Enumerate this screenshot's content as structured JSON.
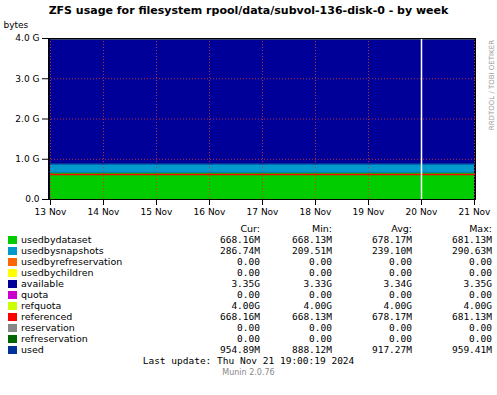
{
  "chart_data": {
    "type": "area",
    "title": "ZFS usage for filesystem rpool/data/subvol-136-disk-0 - by week",
    "ylabel": "bytes",
    "x": [
      "13 Nov",
      "14 Nov",
      "15 Nov",
      "16 Nov",
      "17 Nov",
      "18 Nov",
      "19 Nov",
      "20 Nov",
      "21 Nov"
    ],
    "ylim": [
      0,
      4294967296
    ],
    "yticks": [
      {
        "value": 0,
        "label": "0.0"
      },
      {
        "value": 1073741824,
        "label": "1.0 G"
      },
      {
        "value": 2147483648,
        "label": "2.0 G"
      },
      {
        "value": 3221225472,
        "label": "3.0 G"
      },
      {
        "value": 4294967296,
        "label": "4.0 G"
      }
    ],
    "grid": true,
    "stacked": true,
    "series": [
      {
        "name": "usedbydataset",
        "type": "area",
        "color": "#00cc00",
        "values": [
          700000000,
          700000000,
          700000000,
          700000000,
          700000000,
          700000000,
          700000000,
          700000000,
          700000000
        ]
      },
      {
        "name": "usedbysnapshots",
        "type": "area",
        "color": "#0099cc",
        "values": [
          255000000,
          255000000,
          255000000,
          255000000,
          255000000,
          255000000,
          255000000,
          255000000,
          255000000
        ]
      },
      {
        "name": "available",
        "type": "area",
        "color": "#000099",
        "values": [
          3339000000,
          3339000000,
          3339000000,
          3339000000,
          3339000000,
          3339000000,
          3339000000,
          3339000000,
          3339000000
        ]
      },
      {
        "name": "refquota",
        "type": "line",
        "color": "#ccff00",
        "values": [
          4294967296,
          4294967296,
          4294967296,
          4294967296,
          4294967296,
          4294967296,
          4294967296,
          4294967296,
          4294967296
        ]
      },
      {
        "name": "referenced",
        "type": "line",
        "color": "#ff0000",
        "values": [
          668000000,
          668000000,
          668000000,
          668000000,
          668000000,
          668000000,
          668000000,
          668000000,
          668000000
        ]
      },
      {
        "name": "used",
        "type": "line",
        "color": "#003399",
        "values": [
          955000000,
          955000000,
          955000000,
          955000000,
          955000000,
          955000000,
          955000000,
          955000000,
          955000000
        ]
      }
    ],
    "vline_x": "20 Nov",
    "vline_color": "white",
    "legend_columns": [
      "Cur:",
      "Min:",
      "Avg:",
      "Max:"
    ],
    "legend_table": [
      {
        "label": "usedbydataset",
        "color": "#00cc00",
        "cur": "668.16M",
        "min": "668.13M",
        "avg": "678.17M",
        "max": "681.13M"
      },
      {
        "label": "usedbysnapshots",
        "color": "#0099cc",
        "cur": "286.74M",
        "min": "209.51M",
        "avg": "239.10M",
        "max": "290.63M"
      },
      {
        "label": "usedbyrefreservation",
        "color": "#ff6600",
        "cur": "0.00",
        "min": "0.00",
        "avg": "0.00",
        "max": "0.00"
      },
      {
        "label": "usedbychildren",
        "color": "#ffff00",
        "cur": "0.00",
        "min": "0.00",
        "avg": "0.00",
        "max": "0.00"
      },
      {
        "label": "available",
        "color": "#000099",
        "cur": "3.35G",
        "min": "3.33G",
        "avg": "3.34G",
        "max": "3.35G"
      },
      {
        "label": "quota",
        "color": "#cc00cc",
        "cur": "0.00",
        "min": "0.00",
        "avg": "0.00",
        "max": "0.00"
      },
      {
        "label": "refquota",
        "color": "#ccff00",
        "cur": "4.00G",
        "min": "4.00G",
        "avg": "4.00G",
        "max": "4.00G"
      },
      {
        "label": "referenced",
        "color": "#ff0000",
        "cur": "668.16M",
        "min": "668.13M",
        "avg": "678.17M",
        "max": "681.13M"
      },
      {
        "label": "reservation",
        "color": "#888888",
        "cur": "0.00",
        "min": "0.00",
        "avg": "0.00",
        "max": "0.00"
      },
      {
        "label": "refreservation",
        "color": "#006600",
        "cur": "0.00",
        "min": "0.00",
        "avg": "0.00",
        "max": "0.00"
      },
      {
        "label": "used",
        "color": "#003399",
        "cur": "954.89M",
        "min": "888.12M",
        "avg": "917.27M",
        "max": "959.41M"
      }
    ],
    "last_update": "Last update: Thu Nov 21 19:00:19 2024",
    "munin_version": "Munin 2.0.76",
    "rrdtool_label": "RRDTOOL / TOBI OETIKER"
  }
}
